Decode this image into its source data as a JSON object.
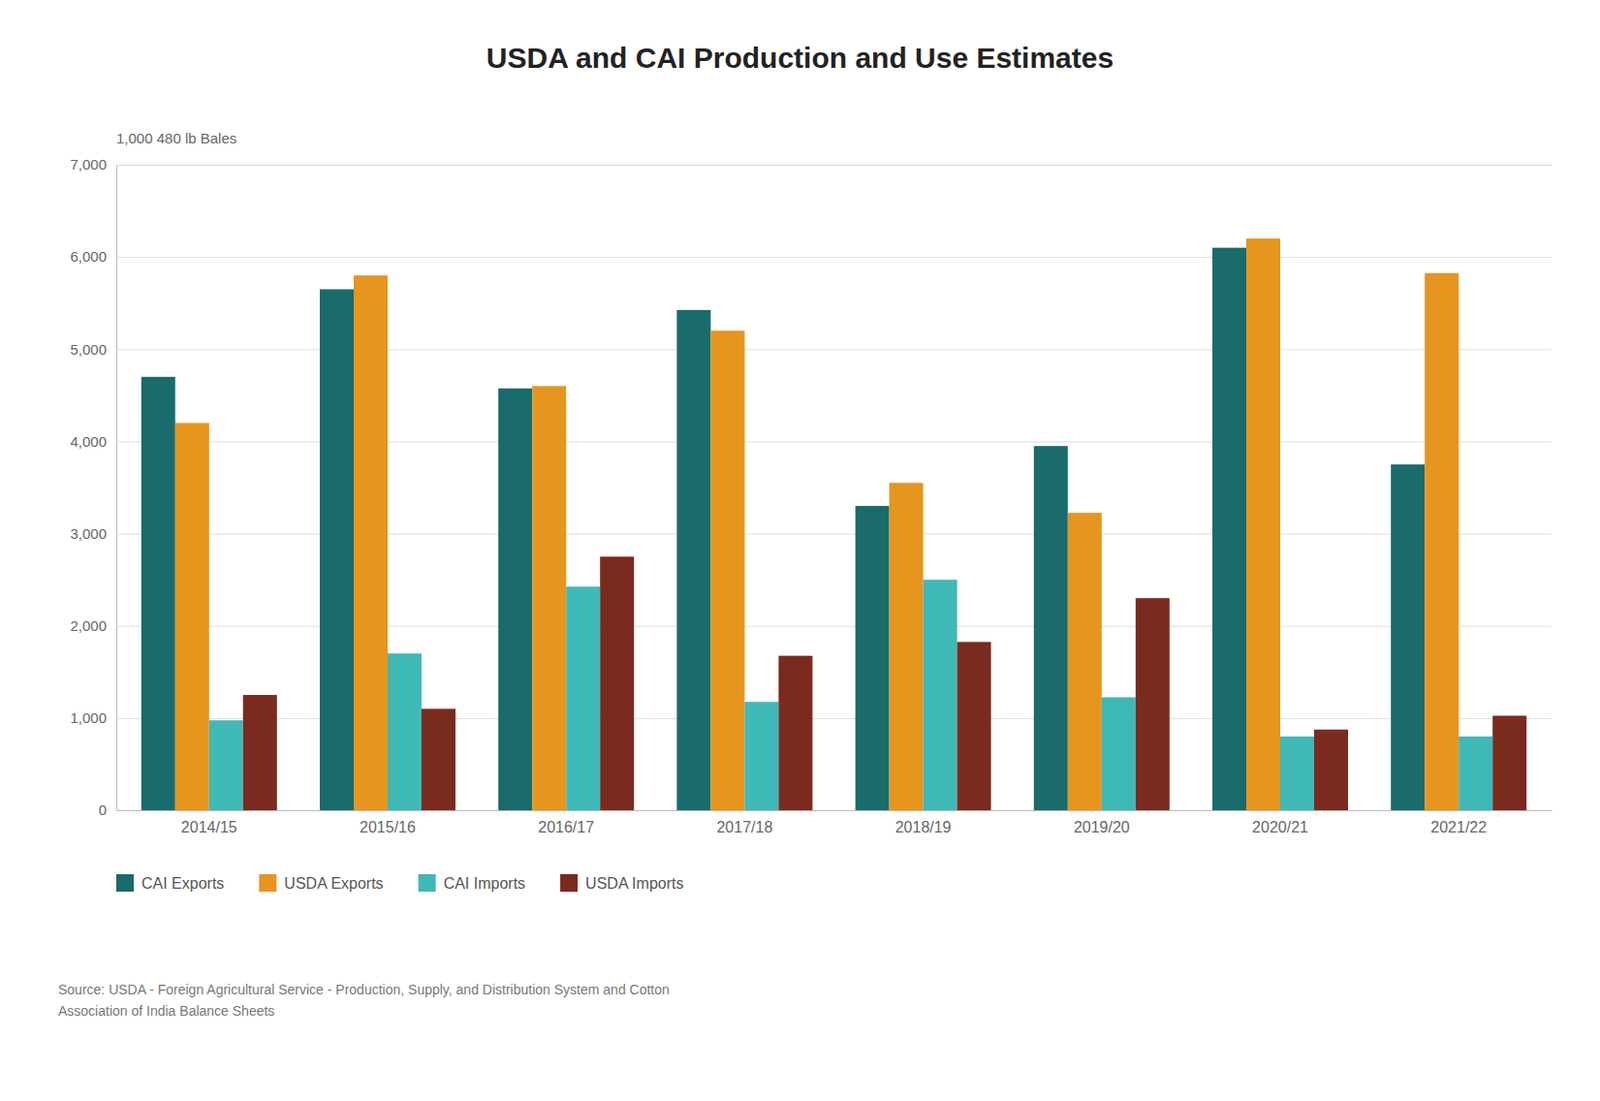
{
  "chart_data": {
    "type": "bar",
    "title": "USDA and CAI Production and Use Estimates",
    "ylabel": "1,000 480 lb Bales",
    "annotations": [
      "Source: USDA - Foreign Agricultural Service - Production, Supply, and Distribution System and Cotton\nAssociation of India Balance Sheets"
    ],
    "categories": [
      "2014/15",
      "2015/16",
      "2016/17",
      "2017/18",
      "2018/19",
      "2019/20",
      "2020/21",
      "2021/22"
    ],
    "series": [
      {
        "name": "CAI Exports",
        "color": "#1a6b6b",
        "values": [
          4700,
          5650,
          4575,
          5425,
          3300,
          3950,
          6100,
          3750
        ]
      },
      {
        "name": "USDA Exports",
        "color": "#e6951e",
        "values": [
          4200,
          5800,
          4600,
          5200,
          3550,
          3225,
          6200,
          5825
        ]
      },
      {
        "name": "CAI Imports",
        "color": "#3fb8b8",
        "values": [
          975,
          1700,
          2425,
          1175,
          2500,
          1225,
          800,
          800
        ]
      },
      {
        "name": "USDA Imports",
        "color": "#7b2a1e",
        "values": [
          1250,
          1100,
          2750,
          1675,
          1825,
          2300,
          875,
          1025
        ]
      }
    ],
    "ylim": [
      0,
      7000
    ],
    "yticks": [
      0,
      {
        "value": 1000,
        "label": "1,000"
      },
      {
        "value": 2000,
        "label": "2,000"
      },
      {
        "value": 3000,
        "label": "3,000"
      },
      {
        "value": 4000,
        "label": "4,000"
      },
      {
        "value": 5000,
        "label": "5,000"
      },
      {
        "value": 6000,
        "label": "6,000"
      },
      {
        "value": 7000,
        "label": "7,000"
      }
    ],
    "grid": true,
    "legend": "bottom"
  }
}
